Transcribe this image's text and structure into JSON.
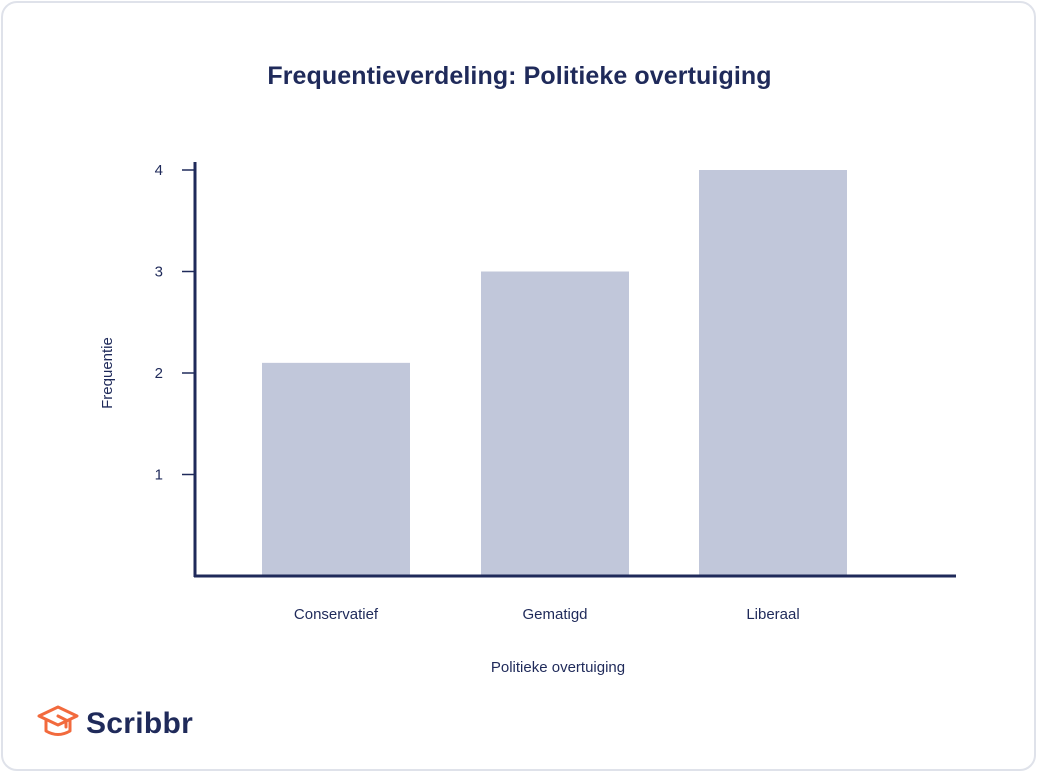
{
  "chart_data": {
    "type": "bar",
    "title": "Frequentieverdeling: Politieke overtuiging",
    "xlabel": "Politieke overtuiging",
    "ylabel": "Frequentie",
    "categories": [
      "Conservatief",
      "Gematigd",
      "Liberaal"
    ],
    "values": [
      2.1,
      3,
      4
    ],
    "yticks": [
      1,
      2,
      3,
      4
    ],
    "ylim": [
      0,
      4
    ],
    "grid": false,
    "legend": "none",
    "colors": {
      "bar": "#c1c7da",
      "axis": "#1f2a5a",
      "text": "#1f2a5a"
    }
  },
  "branding": {
    "logo_text": "Scribbr",
    "logo_icon": "graduation-cap-icon",
    "logo_color": "#f26a3d"
  }
}
